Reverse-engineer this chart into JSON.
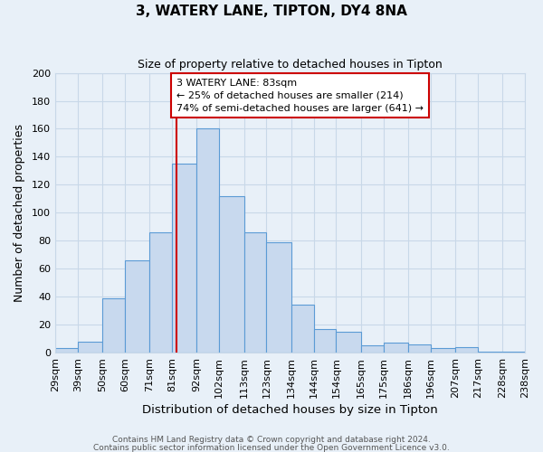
{
  "title": "3, WATERY LANE, TIPTON, DY4 8NA",
  "subtitle": "Size of property relative to detached houses in Tipton",
  "xlabel": "Distribution of detached houses by size in Tipton",
  "ylabel": "Number of detached properties",
  "bar_labels": [
    "29sqm",
    "39sqm",
    "50sqm",
    "60sqm",
    "71sqm",
    "81sqm",
    "92sqm",
    "102sqm",
    "113sqm",
    "123sqm",
    "134sqm",
    "144sqm",
    "154sqm",
    "165sqm",
    "175sqm",
    "186sqm",
    "196sqm",
    "207sqm",
    "217sqm",
    "228sqm",
    "238sqm"
  ],
  "bar_heights": [
    3,
    8,
    39,
    66,
    86,
    135,
    160,
    112,
    86,
    79,
    34,
    17,
    15,
    5,
    7,
    6,
    3,
    4,
    1,
    1
  ],
  "bar_color": "#c8d9ee",
  "bar_edge_color": "#5b9bd5",
  "vline_x": 83,
  "vline_color": "#cc0000",
  "annotation_title": "3 WATERY LANE: 83sqm",
  "annotation_line1": "← 25% of detached houses are smaller (214)",
  "annotation_line2": "74% of semi-detached houses are larger (641) →",
  "annotation_box_color": "#ffffff",
  "annotation_box_edge": "#cc0000",
  "ylim": [
    0,
    200
  ],
  "yticks": [
    0,
    20,
    40,
    60,
    80,
    100,
    120,
    140,
    160,
    180,
    200
  ],
  "grid_color": "#c8d8e8",
  "bg_color": "#e8f0f8",
  "footnote1": "Contains HM Land Registry data © Crown copyright and database right 2024.",
  "footnote2": "Contains public sector information licensed under the Open Government Licence v3.0.",
  "bin_edges": [
    29,
    39,
    50,
    60,
    71,
    81,
    92,
    102,
    113,
    123,
    134,
    144,
    154,
    165,
    175,
    186,
    196,
    207,
    217,
    228,
    238
  ]
}
